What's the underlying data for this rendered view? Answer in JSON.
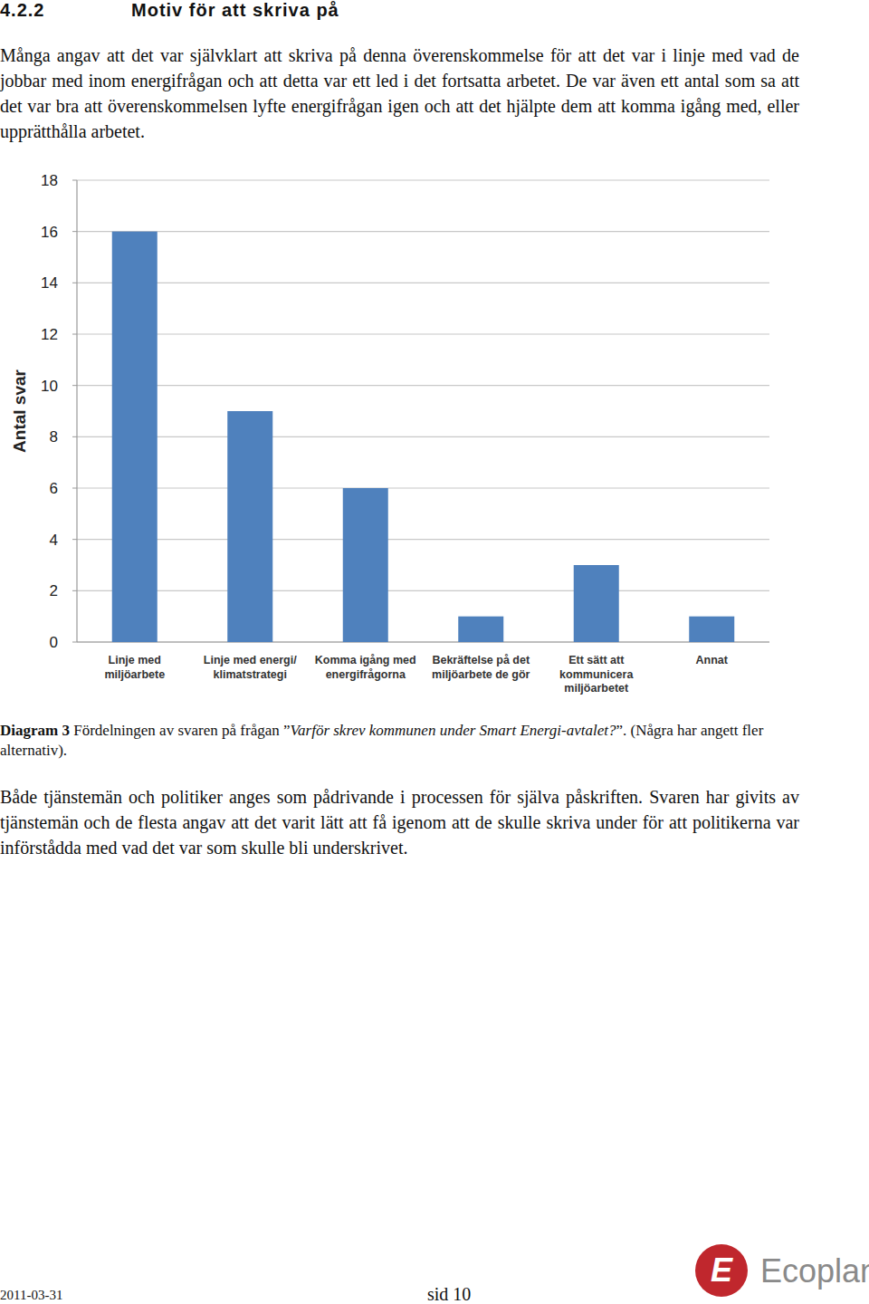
{
  "heading": {
    "number": "4.2.2",
    "title": "Motiv för att skriva på"
  },
  "paragraphs": [
    "Många angav att det var självklart att skriva på denna överenskommelse för att det var i linje med vad de jobbar med inom energifrågan och att detta var ett led i det fortsatta arbetet. De var även ett antal som sa att det var bra att överenskommelsen lyfte energifrågan igen och att det hjälpte dem att komma igång med, eller upprätthålla arbetet.",
    "Både tjänstemän och politiker anges som pådrivande i processen för själva påskriften. Svaren har givits av tjänstemän och de flesta angav att det varit lätt att få igenom att de skulle skriva under för att politikerna var införstådda med vad det var som skulle bli underskrivet."
  ],
  "chart_data": {
    "type": "bar",
    "y_label": "Antal svar",
    "categories": [
      "Linje med miljöarbete",
      "Linje med energi/ klimatstrategi",
      "Komma igång med energifrågorna",
      "Bekräftelse på det miljöarbete de gör",
      "Ett sätt att kommunicera miljöarbetet",
      "Annat"
    ],
    "values": [
      16,
      9,
      6,
      1,
      3,
      1
    ],
    "color": "#4f81bd",
    "ylim": [
      0,
      18
    ],
    "yticks": [
      0,
      2,
      4,
      6,
      8,
      10,
      12,
      14,
      16,
      18
    ],
    "grid": true
  },
  "caption": {
    "label": "Diagram 3",
    "text_before": "Fördelningen av svaren på frågan ”",
    "question": "Varför skrev kommunen under Smart Energi-avtalet?",
    "text_after": "”. (Några har angett fler alternativ)."
  },
  "footer": {
    "date": "2011-03-31",
    "page": "sid 10",
    "logo_letter": "E",
    "logo": "Ecoplan"
  }
}
